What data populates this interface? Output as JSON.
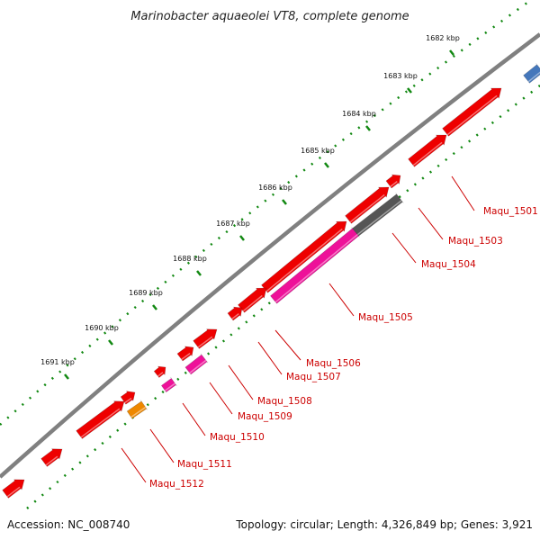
{
  "title": "Marinobacter aquaeolei VT8, complete genome",
  "footer": {
    "accession": "Accession: NC_008740",
    "summary": "Topology: circular; Length: 4,326,849 bp; Genes: 3,921"
  },
  "scale_ticks": [
    "1682 kbp",
    "1683 kbp",
    "1684 kbp",
    "1685 kbp",
    "1686 kbp",
    "1687 kbp",
    "1688 kbp",
    "1689 kbp",
    "1690 kbp",
    "1691 kbp"
  ],
  "gene_labels": [
    "Maqu_1501",
    "Maqu_1503",
    "Maqu_1504",
    "Maqu_1505",
    "Maqu_1506",
    "Maqu_1507",
    "Maqu_1508",
    "Maqu_1509",
    "Maqu_1510",
    "Maqu_1511",
    "Maqu_1512"
  ],
  "colors": {
    "forward_gene": "#ee0000",
    "category_pink": "#ee1199",
    "category_gray": "#555555",
    "category_orange": "#ee8800",
    "category_blue": "#4477bb",
    "backbone": "#808080",
    "dotted_ring": "#118811",
    "label": "#cc0000"
  }
}
